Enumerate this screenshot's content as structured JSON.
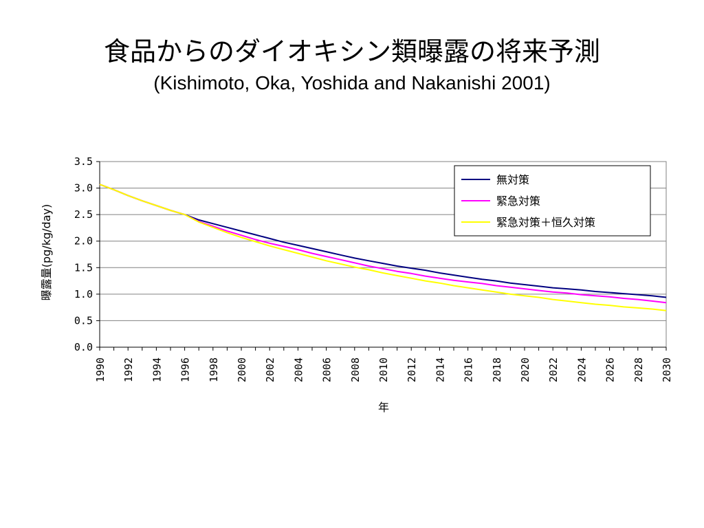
{
  "slide": {
    "title": "食品からのダイオキシン類曝露の将来予測",
    "subtitle": "(Kishimoto, Oka, Yoshida and Nakanishi 2001)"
  },
  "chart_data": {
    "type": "line",
    "xlabel": "年",
    "ylabel": "曝露量(pg/kg/day)",
    "xlim": [
      1990,
      2030
    ],
    "ylim": [
      0,
      3.5
    ],
    "x_ticks": [
      1990,
      1992,
      1994,
      1996,
      1998,
      2000,
      2002,
      2004,
      2006,
      2008,
      2010,
      2012,
      2014,
      2016,
      2018,
      2020,
      2022,
      2024,
      2026,
      2028,
      2030
    ],
    "y_ticks": [
      "0.0",
      "0.5",
      "1.0",
      "1.5",
      "2.0",
      "2.5",
      "3.0",
      "3.5"
    ],
    "grid": "horizontal",
    "legend_position": "top-right",
    "x": [
      1990,
      1991,
      1992,
      1993,
      1994,
      1995,
      1996,
      1997,
      1998,
      1999,
      2000,
      2001,
      2002,
      2003,
      2004,
      2005,
      2006,
      2007,
      2008,
      2009,
      2010,
      2011,
      2012,
      2013,
      2014,
      2015,
      2016,
      2017,
      2018,
      2019,
      2020,
      2021,
      2022,
      2023,
      2024,
      2025,
      2026,
      2027,
      2028,
      2029,
      2030
    ],
    "series": [
      {
        "name": "無対策",
        "color": "#000080",
        "values": [
          3.07,
          2.97,
          2.86,
          2.76,
          2.67,
          2.58,
          2.5,
          2.4,
          2.33,
          2.26,
          2.19,
          2.12,
          2.05,
          1.98,
          1.92,
          1.86,
          1.8,
          1.74,
          1.68,
          1.63,
          1.58,
          1.53,
          1.49,
          1.45,
          1.4,
          1.36,
          1.32,
          1.28,
          1.25,
          1.21,
          1.18,
          1.15,
          1.12,
          1.1,
          1.08,
          1.05,
          1.03,
          1.01,
          0.99,
          0.97,
          0.94
        ]
      },
      {
        "name": "緊急対策",
        "color": "#ff00ff",
        "values": [
          3.07,
          2.97,
          2.86,
          2.76,
          2.67,
          2.58,
          2.5,
          2.37,
          2.28,
          2.19,
          2.11,
          2.03,
          1.96,
          1.9,
          1.84,
          1.77,
          1.71,
          1.65,
          1.59,
          1.53,
          1.48,
          1.43,
          1.39,
          1.34,
          1.3,
          1.26,
          1.23,
          1.2,
          1.16,
          1.13,
          1.1,
          1.07,
          1.04,
          1.02,
          0.99,
          0.97,
          0.95,
          0.92,
          0.9,
          0.87,
          0.84
        ]
      },
      {
        "name": "緊急対策＋恒久対策",
        "color": "#ffff00",
        "values": [
          3.07,
          2.97,
          2.86,
          2.76,
          2.67,
          2.58,
          2.5,
          2.36,
          2.26,
          2.16,
          2.07,
          1.99,
          1.91,
          1.84,
          1.77,
          1.7,
          1.63,
          1.57,
          1.51,
          1.46,
          1.4,
          1.35,
          1.3,
          1.25,
          1.21,
          1.16,
          1.12,
          1.08,
          1.04,
          1.0,
          0.97,
          0.94,
          0.9,
          0.87,
          0.84,
          0.81,
          0.79,
          0.76,
          0.74,
          0.72,
          0.69
        ]
      }
    ]
  }
}
